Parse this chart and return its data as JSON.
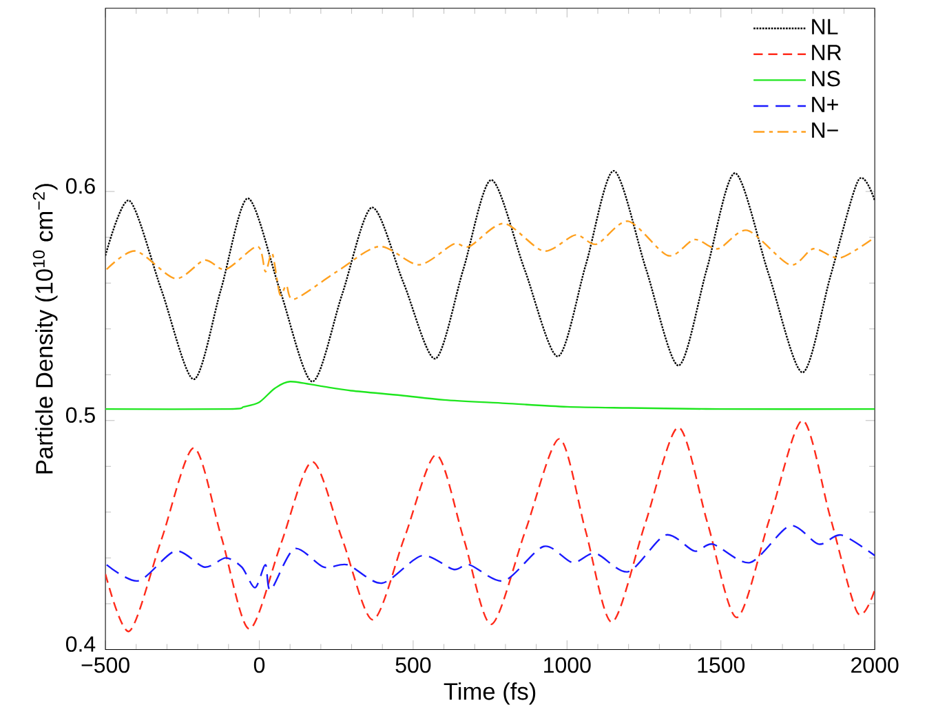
{
  "chart_data": {
    "type": "line",
    "xlabel": "Time (fs)",
    "ylabel": "Particle Density (10$^{10}$ cm$^{−2}$)",
    "xlim": [
      -500,
      2000
    ],
    "ylim": [
      0.4,
      0.68
    ],
    "xticks": [
      {
        "value": -500,
        "label": "−500"
      },
      0,
      500,
      1000,
      1500,
      2000
    ],
    "yticks": [
      0.4,
      0.5,
      0.6
    ],
    "legend": "top right",
    "grid": false,
    "series": [
      {
        "name": "NL",
        "color": "#000000",
        "line_style": "dotted",
        "x": [
          -500,
          -422,
          -318,
          -213,
          -125,
          -37,
          67,
          172,
          269,
          366,
          469,
          572,
          663,
          754,
          862,
          970,
          1061,
          1152,
          1257,
          1362,
          1454,
          1546,
          1655,
          1765,
          1856,
          1947,
          2000
        ],
        "values": [
          0.572,
          0.596,
          0.557,
          0.518,
          0.557,
          0.597,
          0.557,
          0.517,
          0.555,
          0.593,
          0.56,
          0.527,
          0.566,
          0.605,
          0.566,
          0.528,
          0.568,
          0.609,
          0.566,
          0.524,
          0.566,
          0.608,
          0.564,
          0.521,
          0.563,
          0.605,
          0.596
        ]
      },
      {
        "name": "NR",
        "color": "#ff2a1a",
        "line_style": "dashed",
        "x": [
          -500,
          -422,
          -318,
          -213,
          -123,
          -33,
          70,
          172,
          270,
          369,
          472,
          575,
          665,
          754,
          865,
          975,
          1060,
          1146,
          1254,
          1362,
          1457,
          1552,
          1658,
          1765,
          1855,
          1944,
          2000
        ],
        "values": [
          0.433,
          0.408,
          0.448,
          0.488,
          0.449,
          0.409,
          0.446,
          0.482,
          0.448,
          0.413,
          0.449,
          0.485,
          0.448,
          0.411,
          0.452,
          0.492,
          0.452,
          0.412,
          0.455,
          0.497,
          0.455,
          0.414,
          0.457,
          0.5,
          0.458,
          0.416,
          0.426
        ]
      },
      {
        "name": "NS",
        "color": "#1ee61e",
        "line_style": "solid",
        "x": [
          -500,
          -100,
          -50,
          0,
          50,
          100,
          200,
          300,
          460,
          600,
          800,
          1000,
          1200,
          1500,
          2000
        ],
        "values": [
          0.505,
          0.505,
          0.506,
          0.508,
          0.514,
          0.517,
          0.515,
          0.513,
          0.511,
          0.509,
          0.5075,
          0.506,
          0.5055,
          0.505,
          0.505
        ]
      },
      {
        "name": "N+",
        "color": "#1a1aff",
        "line_style": "dashed",
        "x": [
          -496,
          -393,
          -273,
          -178,
          -109,
          -57,
          -14,
          20,
          37,
          114,
          209,
          287,
          399,
          528,
          631,
          683,
          795,
          924,
          1018,
          1092,
          1199,
          1320,
          1414,
          1474,
          1595,
          1724,
          1818,
          1891,
          2000
        ],
        "values": [
          0.437,
          0.43,
          0.443,
          0.436,
          0.44,
          0.436,
          0.427,
          0.437,
          0.426,
          0.444,
          0.436,
          0.437,
          0.429,
          0.441,
          0.435,
          0.437,
          0.43,
          0.445,
          0.438,
          0.442,
          0.434,
          0.45,
          0.443,
          0.446,
          0.438,
          0.454,
          0.446,
          0.45,
          0.441
        ]
      },
      {
        "name": "N−",
        "color": "#ffa01e",
        "line_style": "dashdot",
        "x": [
          -496,
          -402,
          -273,
          -178,
          -109,
          -6,
          20,
          42,
          67,
          88,
          114,
          252,
          390,
          519,
          631,
          683,
          795,
          924,
          1027,
          1096,
          1199,
          1328,
          1414,
          1491,
          1586,
          1724,
          1801,
          1887,
          2000
        ],
        "values": [
          0.566,
          0.574,
          0.562,
          0.57,
          0.566,
          0.576,
          0.565,
          0.573,
          0.555,
          0.559,
          0.553,
          0.565,
          0.576,
          0.568,
          0.577,
          0.576,
          0.586,
          0.574,
          0.581,
          0.577,
          0.587,
          0.572,
          0.579,
          0.575,
          0.583,
          0.568,
          0.575,
          0.571,
          0.58
        ]
      }
    ]
  }
}
